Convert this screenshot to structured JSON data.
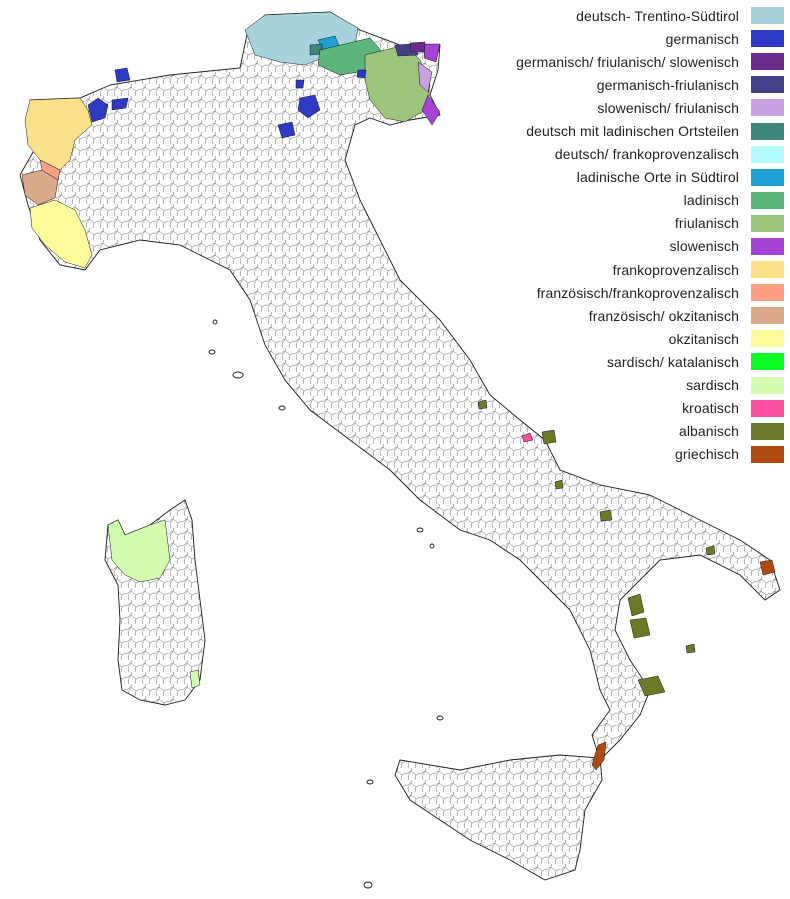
{
  "legend": {
    "items": [
      {
        "label": "deutsch- Trentino-Südtirol",
        "color": "#a8d3dc"
      },
      {
        "label": "germanisch",
        "color": "#2f3ac4"
      },
      {
        "label": "germanisch/ friulanisch/ slowenisch",
        "color": "#6a2b8a"
      },
      {
        "label": "germanisch-friulanisch",
        "color": "#45408a"
      },
      {
        "label": "slowenisch/ friulanisch",
        "color": "#c9a0e0"
      },
      {
        "label": "deutsch mit ladinischen Ortsteilen",
        "color": "#3e857c"
      },
      {
        "label": "deutsch/ frankoprovenzalisch",
        "color": "#b5fbff"
      },
      {
        "label": "ladinische Orte in Südtirol",
        "color": "#1e9fd6"
      },
      {
        "label": "ladinisch",
        "color": "#5cb57a"
      },
      {
        "label": "friulanisch",
        "color": "#9dc47c"
      },
      {
        "label": "slowenisch",
        "color": "#a742d6"
      },
      {
        "label": "frankoprovenzalisch",
        "color": "#fbe08a"
      },
      {
        "label": "französisch/frankoprovenzalisch",
        "color": "#fc9f85"
      },
      {
        "label": "französisch/ okzitanisch",
        "color": "#dba98a"
      },
      {
        "label": "okzitanisch",
        "color": "#fcfa9a"
      },
      {
        "label": "sardisch/ katalanisch",
        "color": "#0bfb25"
      },
      {
        "label": "sardisch",
        "color": "#d3fcb0"
      },
      {
        "label": "kroatisch",
        "color": "#fb4fa0"
      },
      {
        "label": "albanisch",
        "color": "#6a7a28"
      },
      {
        "label": "griechisch",
        "color": "#b04a10"
      }
    ]
  }
}
